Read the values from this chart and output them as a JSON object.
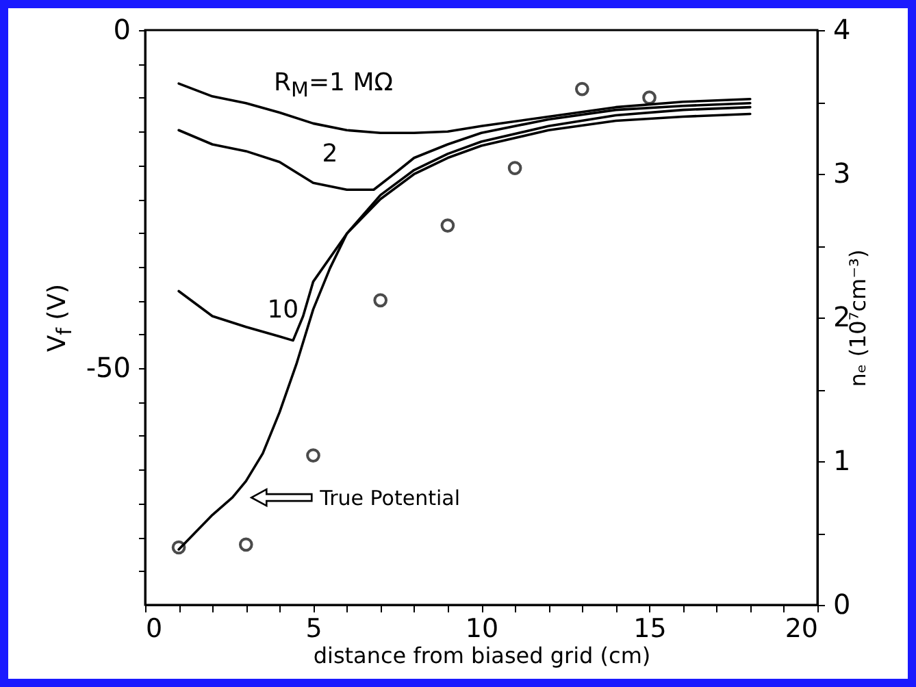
{
  "chart_data": {
    "type": "line",
    "xlabel": "distance from biased grid (cm)",
    "ylabel": "V$_{f}$ (V)",
    "y2label": "nₑ (10⁷cm⁻³)",
    "xlim": [
      0,
      20
    ],
    "xticks": [
      0,
      {
        "value": 1,
        "label": null
      },
      {
        "value": 2,
        "label": null
      },
      {
        "value": 3,
        "label": null
      },
      {
        "value": 4,
        "label": null
      },
      5,
      {
        "value": 6,
        "label": null
      },
      {
        "value": 7,
        "label": null
      },
      {
        "value": 8,
        "label": null
      },
      {
        "value": 9,
        "label": null
      },
      10,
      {
        "value": 11,
        "label": null
      },
      {
        "value": 12,
        "label": null
      },
      {
        "value": 13,
        "label": null
      },
      {
        "value": 14,
        "label": null
      },
      15,
      {
        "value": 16,
        "label": null
      },
      {
        "value": 17,
        "label": null
      },
      {
        "value": 18,
        "label": null
      },
      {
        "value": 19,
        "label": null
      },
      20
    ],
    "ylim": [
      -85,
      0
    ],
    "yticks": [
      0,
      {
        "value": -5,
        "label": null
      },
      {
        "value": -10,
        "label": null
      },
      {
        "value": -15,
        "label": null
      },
      {
        "value": -20,
        "label": null
      },
      {
        "value": -25,
        "label": null
      },
      {
        "value": -30,
        "label": null
      },
      {
        "value": -35,
        "label": null
      },
      {
        "value": -40,
        "label": null
      },
      {
        "value": -45,
        "label": null
      },
      -50,
      {
        "value": -55,
        "label": null
      },
      {
        "value": -60,
        "label": null
      },
      {
        "value": -65,
        "label": null
      },
      {
        "value": -70,
        "label": null
      },
      {
        "value": -75,
        "label": null
      },
      {
        "value": -80,
        "label": null
      }
    ],
    "y2lim": [
      0,
      4
    ],
    "y2ticks": [
      0,
      {
        "value": 0.5,
        "label": null
      },
      1,
      {
        "value": 1.5,
        "label": null
      },
      2,
      {
        "value": 2.5,
        "label": null
      },
      3,
      {
        "value": 3.5,
        "label": null
      },
      4
    ],
    "line_style": "solid",
    "series": [
      {
        "color": "#000000",
        "x": [
          1,
          2,
          3,
          4,
          5,
          6,
          7,
          8,
          9,
          10,
          12,
          14,
          16,
          18
        ],
        "values": [
          -7.9,
          -9.8,
          -10.8,
          -12.2,
          -13.8,
          -14.8,
          -15.2,
          -15.2,
          -15,
          -14.2,
          -12.8,
          -11.4,
          -10.6,
          -10.2
        ]
      },
      {
        "color": "#000000",
        "x": [
          1,
          2,
          3,
          4,
          5,
          6,
          6.8,
          7.5,
          8,
          9,
          10,
          12,
          14,
          16,
          18
        ],
        "values": [
          -14.8,
          -16.9,
          -17.9,
          -19.5,
          -22.6,
          -23.6,
          -23.6,
          -20.9,
          -18.9,
          -16.9,
          -15.2,
          -13.2,
          -11.8,
          -11.2,
          -10.8
        ]
      },
      {
        "color": "#000000",
        "x": [
          1,
          2,
          3,
          4,
          4.4,
          4.7,
          5,
          6,
          7,
          8,
          9,
          10,
          12,
          14,
          16,
          18
        ],
        "values": [
          -38.6,
          -42.3,
          -43.9,
          -45.3,
          -45.9,
          -42.3,
          -37.2,
          -30.1,
          -24.4,
          -20.7,
          -18.3,
          -16.5,
          -14.2,
          -12.6,
          -11.8,
          -11.4
        ]
      },
      {
        "color": "#000000",
        "x": [
          1,
          2,
          2.6,
          3,
          3.5,
          4,
          4.5,
          5,
          5.5,
          6,
          7,
          8,
          9,
          10,
          12,
          14,
          16,
          18
        ],
        "values": [
          -76.8,
          -71.7,
          -69.1,
          -66.7,
          -62.6,
          -56.5,
          -49.4,
          -41.3,
          -35.2,
          -30.1,
          -25,
          -21.3,
          -18.9,
          -17.1,
          -14.8,
          -13.4,
          -12.8,
          -12.4
        ]
      },
      {
        "type": "scatter",
        "axis": "y2",
        "marker": "circle",
        "color": "#000000",
        "x": [
          1,
          3,
          5,
          7,
          9,
          11,
          13,
          15
        ],
        "values": [
          0.4,
          0.42,
          1.04,
          2.12,
          2.64,
          3.04,
          3.59,
          3.53
        ]
      }
    ],
    "annotations": [
      {
        "text": "R$_{M}$=1 MΩ",
        "x": 5.6,
        "y": -14.3
      },
      {
        "text": "2",
        "x": 5.5,
        "y": -23.1
      },
      {
        "text": "10",
        "x": 4.1,
        "y": -45.5
      },
      "True Potential"
    ]
  }
}
